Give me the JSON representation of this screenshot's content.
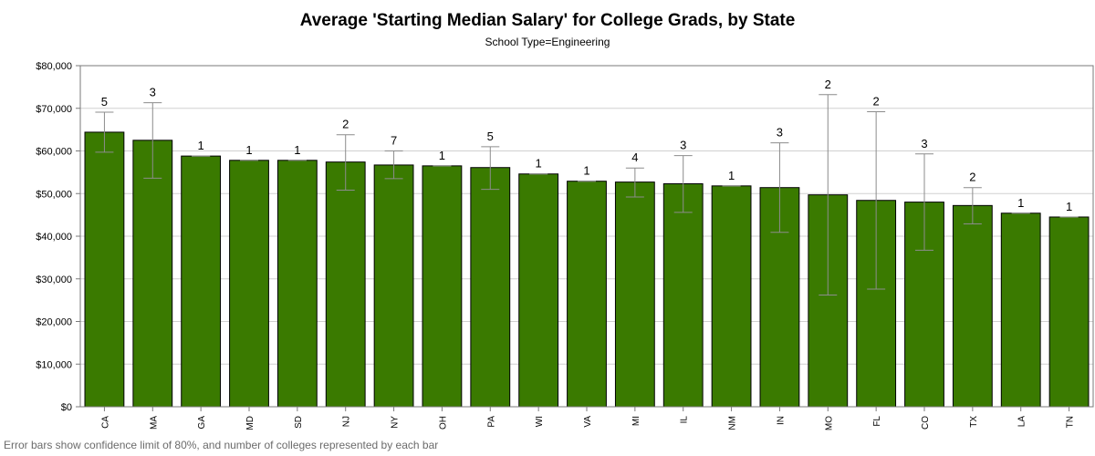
{
  "chart_data": {
    "type": "bar",
    "title": "Average 'Starting Median Salary' for College Grads, by State",
    "subtitle": "School Type=Engineering",
    "footnote": "Error bars show confidence limit of 80%, and number of colleges represented by each bar",
    "ylim": [
      0,
      80000
    ],
    "yticks": [
      {
        "value": 0,
        "label": "$0"
      },
      {
        "value": 10000,
        "label": "$10,000"
      },
      {
        "value": 20000,
        "label": "$20,000"
      },
      {
        "value": 30000,
        "label": "$30,000"
      },
      {
        "value": 40000,
        "label": "$40,000"
      },
      {
        "value": 50000,
        "label": "$50,000"
      },
      {
        "value": 60000,
        "label": "$60,000"
      },
      {
        "value": 70000,
        "label": "$70,000"
      },
      {
        "value": 80000,
        "label": "$80,000"
      }
    ],
    "grid": true,
    "categories": [
      "CA",
      "MA",
      "GA",
      "MD",
      "SD",
      "NJ",
      "NY",
      "OH",
      "PA",
      "WI",
      "VA",
      "MI",
      "IL",
      "NM",
      "IN",
      "MO",
      "FL",
      "CO",
      "TX",
      "LA",
      "TN"
    ],
    "values": [
      64400,
      62500,
      58800,
      57800,
      57800,
      57400,
      56700,
      56500,
      56100,
      54600,
      52900,
      52700,
      52300,
      51800,
      51400,
      49700,
      48400,
      48000,
      47200,
      45400,
      44500
    ],
    "error_low": [
      59700,
      53600,
      58800,
      57800,
      57800,
      50800,
      53500,
      56500,
      51000,
      54600,
      52900,
      49200,
      45600,
      51800,
      40900,
      26200,
      27600,
      36700,
      42900,
      45400,
      44500
    ],
    "error_high": [
      69100,
      71300,
      58800,
      57800,
      57800,
      63800,
      60000,
      56500,
      61000,
      54600,
      52900,
      56000,
      58900,
      51800,
      61900,
      73200,
      69200,
      59300,
      51400,
      45400,
      44500
    ],
    "counts": [
      "5",
      "3",
      "1",
      "1",
      "1",
      "2",
      "7",
      "1",
      "5",
      "1",
      "1",
      "4",
      "3",
      "1",
      "3",
      "2",
      "2",
      "3",
      "2",
      "1",
      "1"
    ],
    "colors": {
      "bar": "#3a7a00",
      "bar_edge": "#000000",
      "error": "#8c8c8c",
      "grid": "#d0d0d0",
      "axis": "#7a7a7a"
    }
  }
}
